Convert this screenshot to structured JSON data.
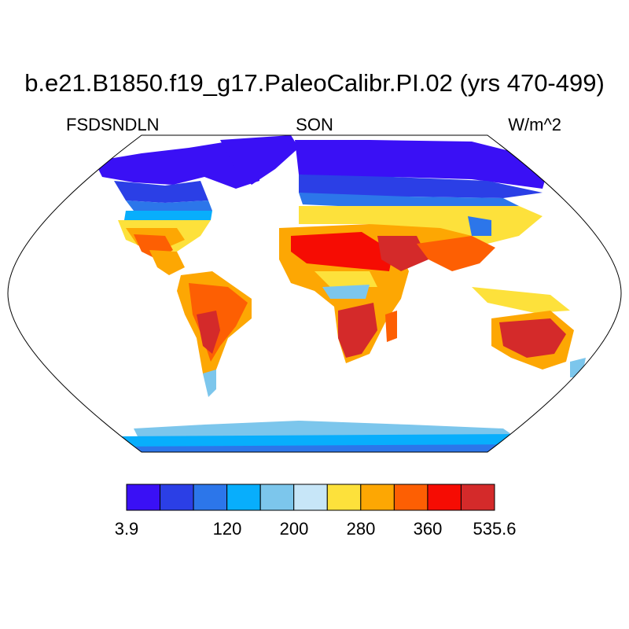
{
  "title": "b.e21.B1850.f19_g17.PaleoCalibr.PI.02 (yrs 470-499)",
  "left_label": "FSDSNDLN",
  "center_label": "SON",
  "right_label": "W/m^2",
  "colorbar": {
    "colors": [
      "#3a10f5",
      "#2b3fe6",
      "#2c76ea",
      "#08aefc",
      "#7cc6ec",
      "#c7e6f8",
      "#fde13b",
      "#fda703",
      "#fd5f03",
      "#f60c03",
      "#d42a2a"
    ],
    "tick_labels": [
      "3.9",
      "120",
      "200",
      "280",
      "360",
      "535.6"
    ]
  }
}
